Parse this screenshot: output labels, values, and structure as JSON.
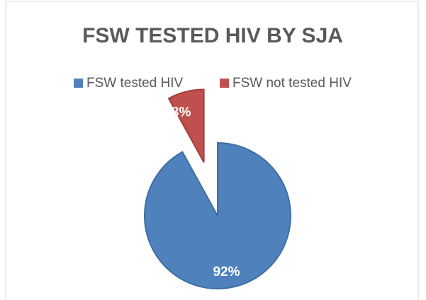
{
  "chart_data": {
    "type": "pie",
    "title": "FSW TESTED HIV BY SJA",
    "categories": [
      "FSW tested HIV",
      "FSW not tested HIV"
    ],
    "values": [
      92,
      8
    ],
    "value_labels": [
      "92%",
      "8%"
    ],
    "colors": [
      "#4f81bd",
      "#c0504d"
    ],
    "legend": "top"
  }
}
